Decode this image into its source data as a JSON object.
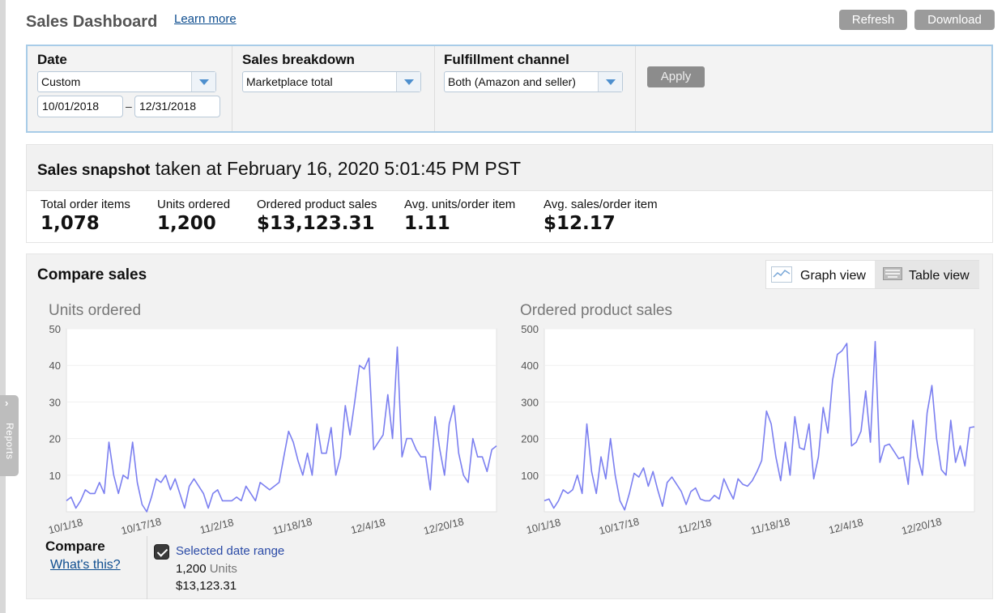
{
  "header": {
    "title": "Sales Dashboard",
    "learn_more": "Learn more",
    "refresh": "Refresh",
    "download": "Download"
  },
  "sidebar_tab": {
    "label": "Reports",
    "chevron": "›"
  },
  "filters": {
    "date": {
      "label": "Date",
      "value": "Custom",
      "start": "10/01/2018",
      "dash": "–",
      "end": "12/31/2018"
    },
    "breakdown": {
      "label": "Sales breakdown",
      "value": "Marketplace total"
    },
    "channel": {
      "label": "Fulfillment channel",
      "value": "Both (Amazon and seller)"
    },
    "apply": "Apply"
  },
  "snapshot": {
    "bold": "Sales snapshot",
    "rest": " taken at February 16, 2020 5:01:45 PM PST",
    "metrics": [
      {
        "label": "Total order items",
        "value": "1,078"
      },
      {
        "label": "Units ordered",
        "value": "1,200"
      },
      {
        "label": "Ordered product sales",
        "value": "$13,123.31"
      },
      {
        "label": "Avg. units/order item",
        "value": "1.11"
      },
      {
        "label": "Avg. sales/order item",
        "value": "$12.17"
      }
    ]
  },
  "compare": {
    "title": "Compare sales",
    "graph_view": "Graph view",
    "table_view": "Table view",
    "compare_label": "Compare",
    "whats_this": "What's this?",
    "selected_range": "Selected date range",
    "units_value": "1,200",
    "units_word": "Units",
    "sales_value": "$13,123.31"
  },
  "colors": {
    "line": "#7b7ff0",
    "accent_blue": "#4d8fce",
    "panel_border": "#a8cce8"
  },
  "icons": [
    "chevron-right-icon",
    "dropdown-arrow-icon",
    "line-chart-icon",
    "keyboard-table-icon",
    "checkmark-icon"
  ],
  "chart_data": [
    {
      "type": "line",
      "title": "Units ordered",
      "ylim": [
        0,
        50
      ],
      "yticks": [
        10,
        20,
        30,
        40,
        50
      ],
      "xtick_labels": [
        "10/1/18",
        "10/17/18",
        "11/2/18",
        "11/18/18",
        "12/4/18",
        "12/20/18"
      ],
      "x_start": "2018-10-01",
      "x_end": "2018-12-31",
      "series": [
        {
          "values": [
            3,
            4,
            1,
            3,
            6,
            5,
            5,
            8,
            5,
            19,
            10,
            5,
            10,
            9,
            19,
            8,
            2,
            0,
            4,
            9,
            8,
            10,
            6,
            9,
            5,
            1,
            7,
            9,
            7,
            5,
            1,
            5,
            6,
            3,
            3,
            3,
            4,
            3,
            7,
            5,
            3,
            8,
            7,
            6,
            7,
            8,
            15,
            22,
            19,
            14,
            10,
            16,
            10,
            24,
            16,
            16,
            23,
            10,
            15,
            29,
            21,
            30,
            40,
            39,
            42,
            17,
            19,
            21,
            32,
            20,
            45,
            15,
            20,
            20,
            17,
            15,
            15,
            6,
            26,
            17,
            10,
            24,
            29,
            16,
            10,
            8,
            20,
            15,
            15,
            11,
            17,
            18
          ]
        }
      ]
    },
    {
      "type": "line",
      "title": "Ordered product sales",
      "ylim": [
        0,
        500
      ],
      "yticks": [
        100,
        200,
        300,
        400,
        500
      ],
      "xtick_labels": [
        "10/1/18",
        "10/17/18",
        "11/2/18",
        "11/18/18",
        "12/4/18",
        "12/20/18"
      ],
      "x_start": "2018-10-01",
      "x_end": "2018-12-31",
      "series": [
        {
          "values": [
            30,
            35,
            10,
            30,
            60,
            50,
            60,
            100,
            50,
            240,
            110,
            50,
            150,
            90,
            200,
            100,
            30,
            5,
            50,
            105,
            95,
            120,
            70,
            110,
            60,
            15,
            80,
            95,
            75,
            55,
            20,
            55,
            65,
            35,
            30,
            30,
            45,
            35,
            90,
            60,
            35,
            90,
            75,
            70,
            85,
            110,
            140,
            275,
            240,
            150,
            85,
            190,
            100,
            260,
            175,
            170,
            240,
            90,
            150,
            285,
            215,
            360,
            430,
            440,
            460,
            180,
            190,
            220,
            330,
            190,
            465,
            135,
            180,
            185,
            165,
            145,
            150,
            75,
            250,
            150,
            100,
            270,
            345,
            200,
            115,
            100,
            250,
            135,
            180,
            125,
            230,
            232
          ]
        }
      ]
    }
  ]
}
